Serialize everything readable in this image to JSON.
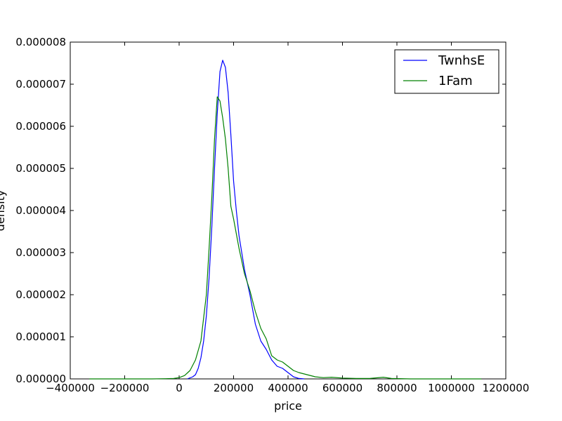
{
  "chart_data": {
    "type": "line",
    "title": "",
    "xlabel": "price",
    "ylabel": "density",
    "xlim": [
      -400000,
      1200000
    ],
    "ylim": [
      0,
      8e-06
    ],
    "grid": false,
    "legend_position": "top-right",
    "x_ticks": [
      -400000,
      -200000,
      0,
      200000,
      400000,
      600000,
      800000,
      1000000,
      1200000
    ],
    "x_tick_labels": [
      "−400000",
      "−200000",
      "0",
      "200000",
      "400000",
      "600000",
      "800000",
      "1000000",
      "1200000"
    ],
    "y_ticks": [
      0,
      1e-06,
      2e-06,
      3e-06,
      4e-06,
      5e-06,
      6e-06,
      7e-06,
      8e-06
    ],
    "y_tick_labels": [
      "0.000000",
      "0.000001",
      "0.000002",
      "0.000003",
      "0.000004",
      "0.000005",
      "0.000006",
      "0.000007",
      "0.000008"
    ],
    "series": [
      {
        "name": "TwnhsE",
        "color": "#0000ff",
        "points": [
          [
            30000,
            0
          ],
          [
            50000,
            5e-08
          ],
          [
            60000,
            1e-07
          ],
          [
            70000,
            2.5e-07
          ],
          [
            80000,
            5e-07
          ],
          [
            90000,
            9e-07
          ],
          [
            100000,
            1.5e-06
          ],
          [
            110000,
            2.4e-06
          ],
          [
            120000,
            3.6e-06
          ],
          [
            130000,
            5e-06
          ],
          [
            140000,
            6.3e-06
          ],
          [
            150000,
            7.3e-06
          ],
          [
            160000,
            7.57e-06
          ],
          [
            170000,
            7.4e-06
          ],
          [
            180000,
            6.8e-06
          ],
          [
            190000,
            5.8e-06
          ],
          [
            200000,
            4.7e-06
          ],
          [
            210000,
            4e-06
          ],
          [
            220000,
            3.4e-06
          ],
          [
            240000,
            2.6e-06
          ],
          [
            260000,
            2e-06
          ],
          [
            280000,
            1.3e-06
          ],
          [
            300000,
            9e-07
          ],
          [
            320000,
            7e-07
          ],
          [
            340000,
            4.5e-07
          ],
          [
            360000,
            3e-07
          ],
          [
            380000,
            2.5e-07
          ],
          [
            400000,
            1.5e-07
          ],
          [
            420000,
            5e-08
          ],
          [
            440000,
            1e-08
          ],
          [
            460000,
            0
          ]
        ]
      },
      {
        "name": "1Fam",
        "color": "#008000",
        "points": [
          [
            -330000,
            0
          ],
          [
            -100000,
            0
          ],
          [
            -50000,
            5e-09
          ],
          [
            -20000,
            1e-08
          ],
          [
            0,
            3e-08
          ],
          [
            20000,
            8e-08
          ],
          [
            40000,
            2e-07
          ],
          [
            60000,
            4.5e-07
          ],
          [
            80000,
            9e-07
          ],
          [
            100000,
            2e-06
          ],
          [
            110000,
            3.1e-06
          ],
          [
            120000,
            4.3e-06
          ],
          [
            130000,
            5.7e-06
          ],
          [
            140000,
            6.7e-06
          ],
          [
            150000,
            6.6e-06
          ],
          [
            160000,
            6.2e-06
          ],
          [
            170000,
            5.7e-06
          ],
          [
            180000,
            5e-06
          ],
          [
            190000,
            4.1e-06
          ],
          [
            200000,
            3.8e-06
          ],
          [
            220000,
            3.1e-06
          ],
          [
            240000,
            2.5e-06
          ],
          [
            260000,
            2.1e-06
          ],
          [
            280000,
            1.6e-06
          ],
          [
            300000,
            1.2e-06
          ],
          [
            320000,
            9.5e-07
          ],
          [
            340000,
            5.5e-07
          ],
          [
            360000,
            4.5e-07
          ],
          [
            380000,
            4e-07
          ],
          [
            400000,
            3e-07
          ],
          [
            420000,
            2e-07
          ],
          [
            440000,
            1.5e-07
          ],
          [
            470000,
            1e-07
          ],
          [
            500000,
            5e-08
          ],
          [
            530000,
            3e-08
          ],
          [
            560000,
            4e-08
          ],
          [
            600000,
            2e-08
          ],
          [
            650000,
            1e-08
          ],
          [
            700000,
            1e-08
          ],
          [
            750000,
            4e-08
          ],
          [
            780000,
            1e-08
          ],
          [
            850000,
            0
          ],
          [
            1000000,
            0
          ],
          [
            1110000,
            0
          ]
        ]
      }
    ]
  }
}
